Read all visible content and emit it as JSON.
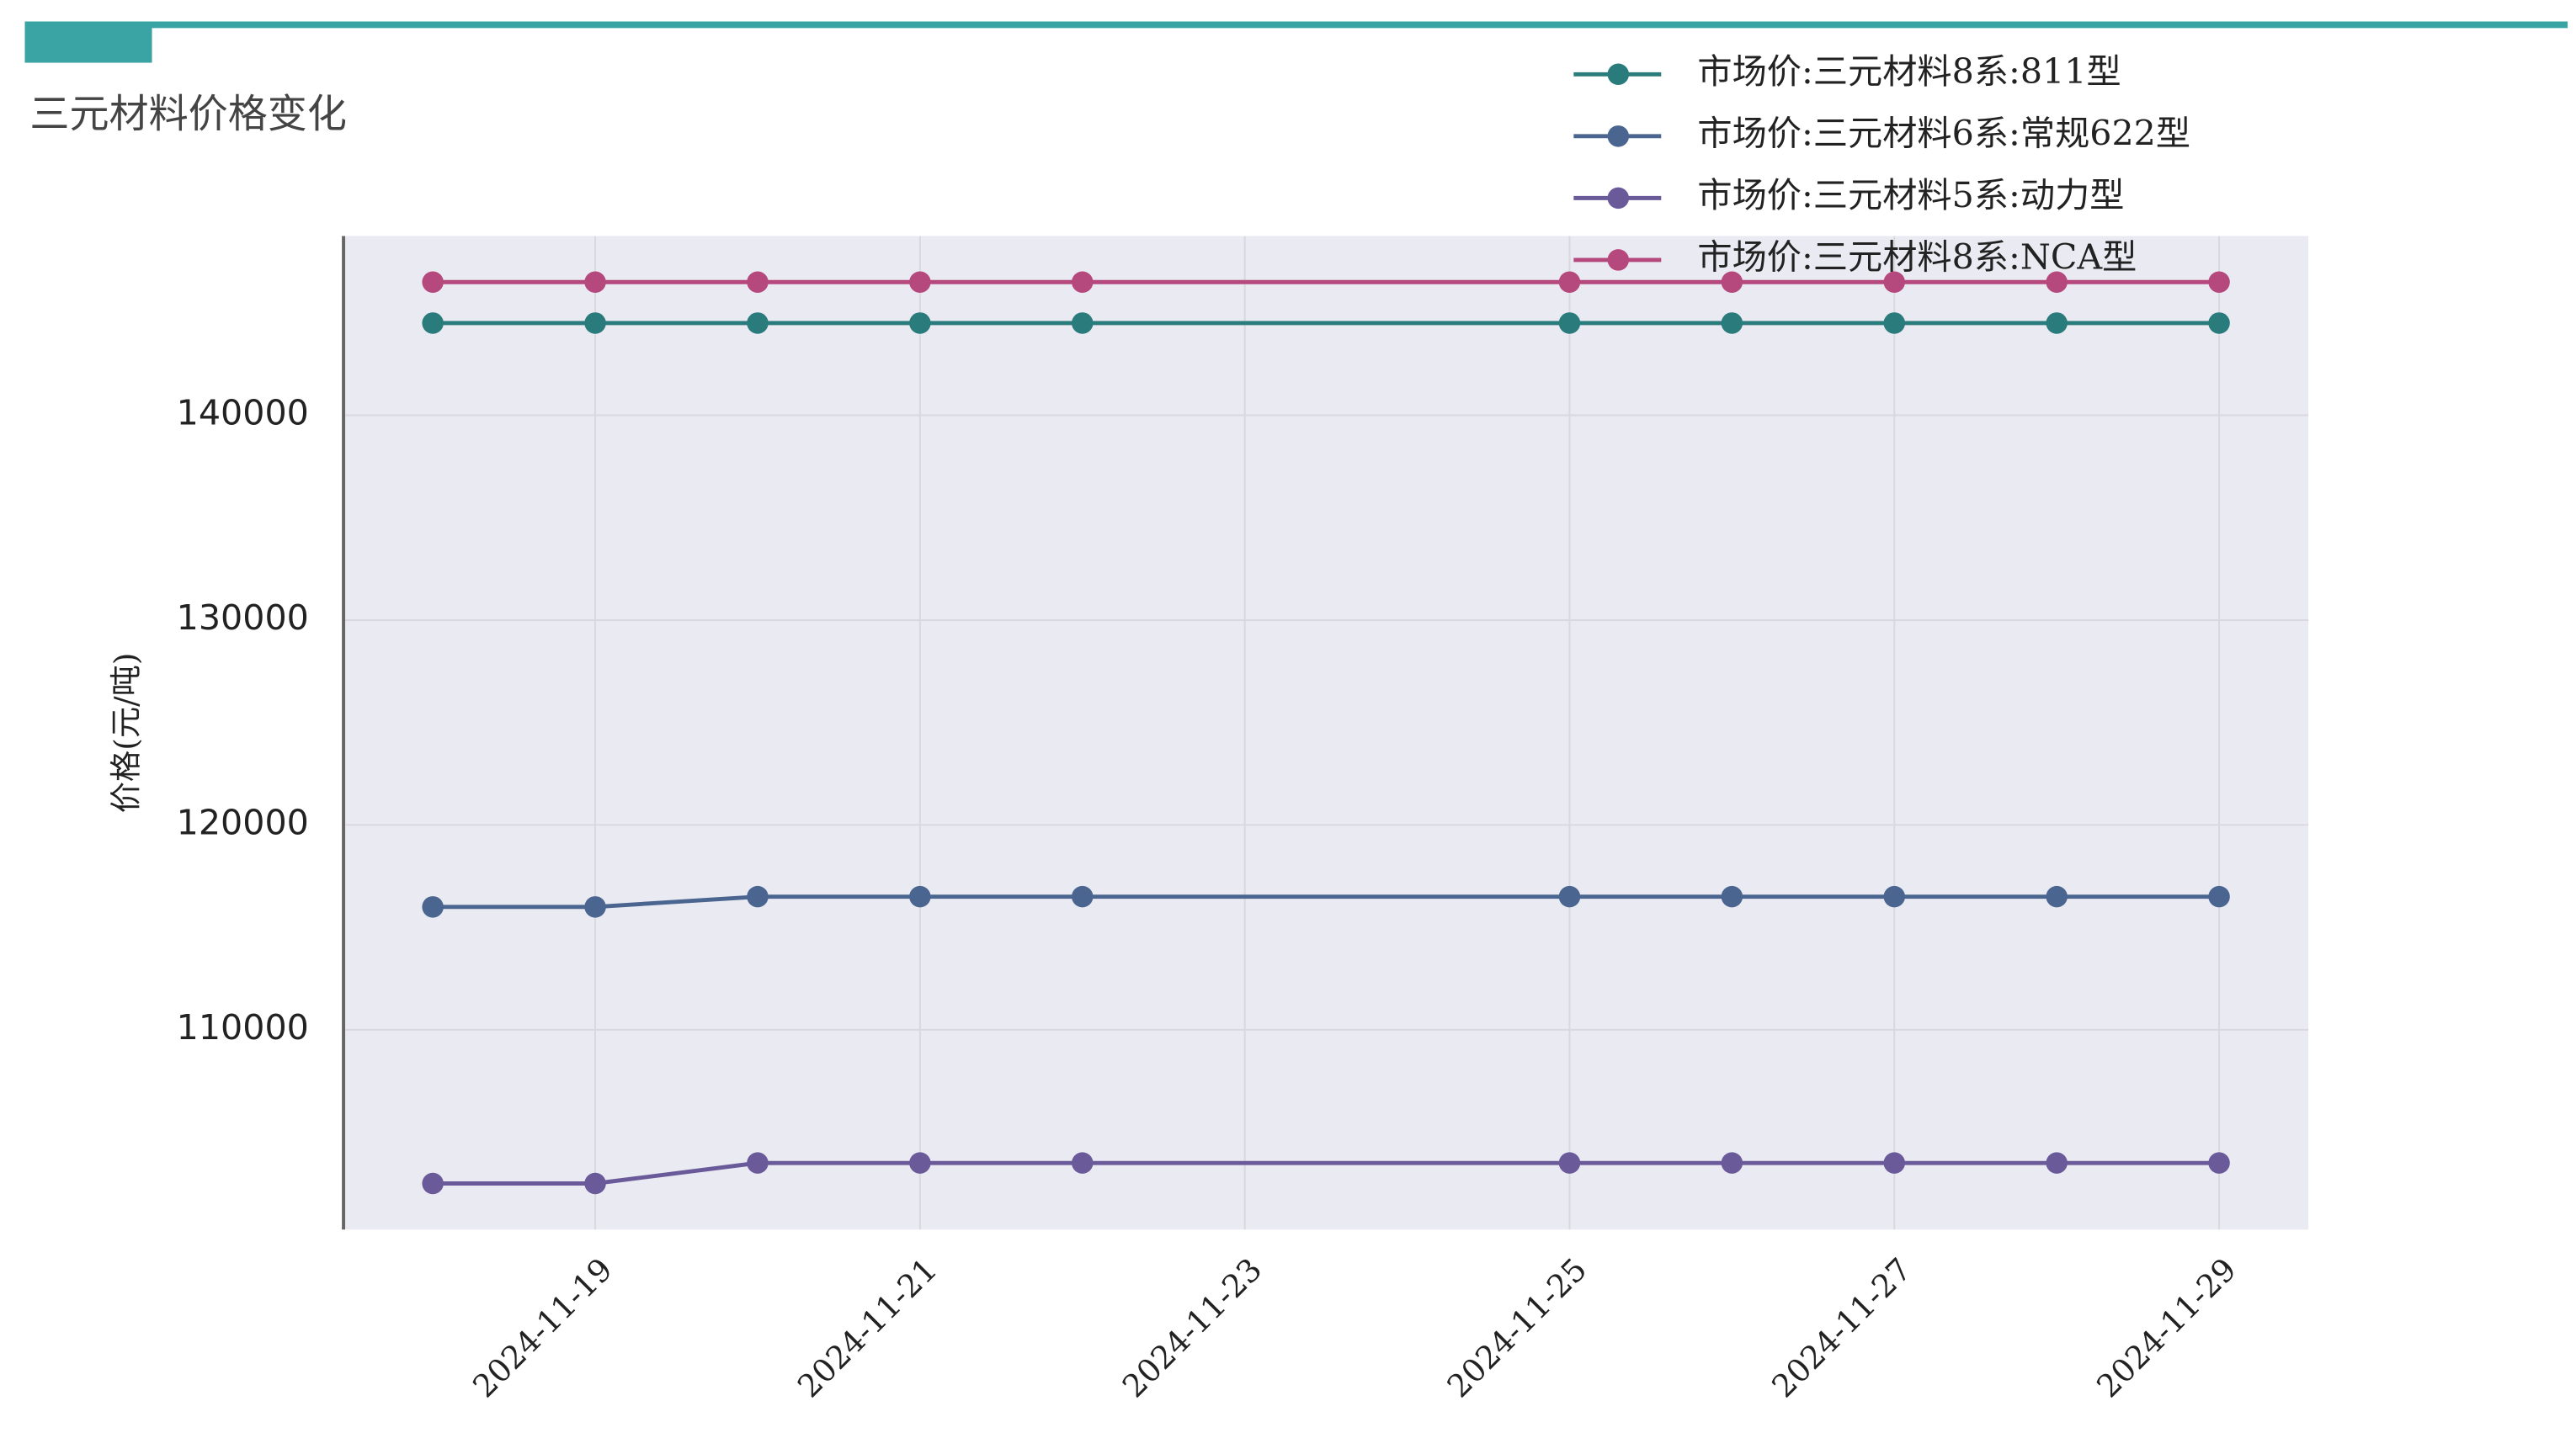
{
  "chart_data": {
    "type": "line",
    "title": "三元材料价格变化",
    "ylabel": "价格(元/吨)",
    "x": [
      "2024-11-18",
      "2024-11-19",
      "2024-11-20",
      "2024-11-21",
      "2024-11-22",
      "2024-11-25",
      "2024-11-26",
      "2024-11-27",
      "2024-11-28",
      "2024-11-29"
    ],
    "series": [
      {
        "name": "市场价:三元材料8系:811型",
        "color": "#2a7b7b",
        "values": [
          144500,
          144500,
          144500,
          144500,
          144500,
          144500,
          144500,
          144500,
          144500,
          144500
        ]
      },
      {
        "name": "市场价:三元材料6系:常规622型",
        "color": "#4a6590",
        "values": [
          116000,
          116000,
          116500,
          116500,
          116500,
          116500,
          116500,
          116500,
          116500,
          116500
        ]
      },
      {
        "name": "市场价:三元材料5系:动力型",
        "color": "#6a5a9a",
        "values": [
          102500,
          102500,
          103500,
          103500,
          103500,
          103500,
          103500,
          103500,
          103500,
          103500
        ]
      },
      {
        "name": "市场价:三元材料8系:NCA型",
        "color": "#b5487c",
        "values": [
          146500,
          146500,
          146500,
          146500,
          146500,
          146500,
          146500,
          146500,
          146500,
          146500
        ]
      }
    ],
    "xlim": [
      "2024-11-17T10:48",
      "2024-11-29T13:12"
    ],
    "xticks": [
      "2024-11-19",
      "2024-11-21",
      "2024-11-23",
      "2024-11-25",
      "2024-11-27",
      "2024-11-29"
    ],
    "ylim": [
      100250,
      148750
    ],
    "yticks": [
      110000,
      120000,
      130000,
      140000
    ],
    "grid": true,
    "legend": "upper right"
  }
}
